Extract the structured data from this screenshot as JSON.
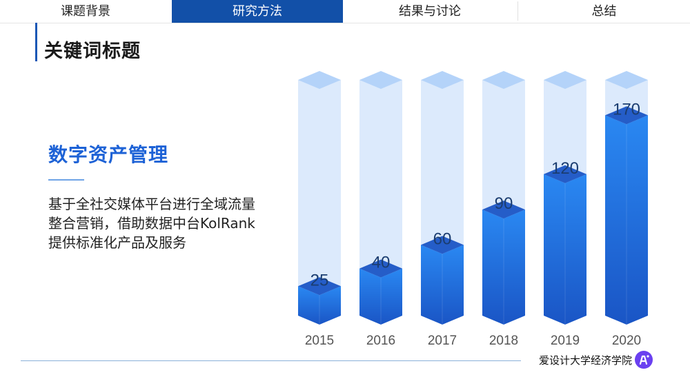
{
  "nav": {
    "tabs": [
      {
        "label": "课题背景",
        "active": false
      },
      {
        "label": "研究方法",
        "active": true
      },
      {
        "label": "结果与讨论",
        "active": false
      },
      {
        "label": "总结",
        "active": false
      }
    ]
  },
  "page_title": "关键词标题",
  "section": {
    "title": "数字资产管理",
    "body": "基于全社交媒体平台进行全域流量整合营销，借助数据中台KolRank提供标准化产品及服务"
  },
  "footer": {
    "org": "爱设计大学经济学院"
  },
  "colors": {
    "accent": "#1250a8",
    "bar_top": "#2a88f2",
    "bar_bottom": "#1a55c5",
    "track": "#dceafc",
    "track_cap": "#b4d3f9",
    "logo": "#6a40f0"
  },
  "chart_data": {
    "type": "bar",
    "style": "3d-column",
    "categories": [
      "2015",
      "2016",
      "2017",
      "2018",
      "2019",
      "2020"
    ],
    "values": [
      25,
      40,
      60,
      90,
      120,
      170
    ],
    "ylim": [
      0,
      200
    ],
    "grid": false,
    "data_labels": true
  }
}
